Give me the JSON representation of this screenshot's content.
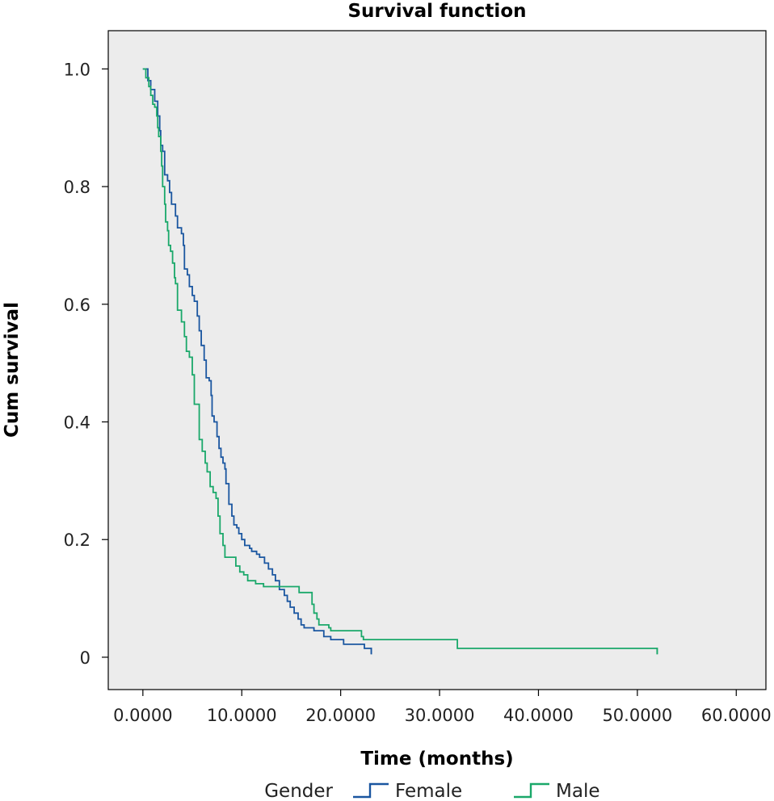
{
  "chart_data": {
    "type": "line",
    "title": "Survival function",
    "xlabel": "Time (months)",
    "ylabel": "Cum survival",
    "xlim": [
      -3.5,
      63
    ],
    "ylim": [
      -0.055,
      1.065
    ],
    "x_ticks": [
      "0.0000",
      "10.0000",
      "20.0000",
      "30.0000",
      "40.0000",
      "50.0000",
      "60.0000"
    ],
    "x_tick_values": [
      0,
      10,
      20,
      30,
      40,
      50,
      60
    ],
    "y_ticks": [
      "0",
      "0.2",
      "0.4",
      "0.6",
      "0.8",
      "1.0"
    ],
    "y_tick_values": [
      0,
      0.2,
      0.4,
      0.6,
      0.8,
      1.0
    ],
    "grid": false,
    "legend": {
      "title": "Gender",
      "position": "bottom"
    },
    "series": [
      {
        "name": "Female",
        "color": "#1a56a0",
        "step": true,
        "points": [
          [
            0,
            1.0
          ],
          [
            0.5,
            0.98
          ],
          [
            0.8,
            0.965
          ],
          [
            1.2,
            0.945
          ],
          [
            1.5,
            0.92
          ],
          [
            1.7,
            0.895
          ],
          [
            1.8,
            0.87
          ],
          [
            2.0,
            0.86
          ],
          [
            2.2,
            0.82
          ],
          [
            2.5,
            0.81
          ],
          [
            2.7,
            0.79
          ],
          [
            2.9,
            0.77
          ],
          [
            3.3,
            0.75
          ],
          [
            3.5,
            0.73
          ],
          [
            3.9,
            0.72
          ],
          [
            4.1,
            0.7
          ],
          [
            4.2,
            0.66
          ],
          [
            4.5,
            0.65
          ],
          [
            4.7,
            0.63
          ],
          [
            5.0,
            0.615
          ],
          [
            5.2,
            0.605
          ],
          [
            5.5,
            0.58
          ],
          [
            5.7,
            0.555
          ],
          [
            5.9,
            0.53
          ],
          [
            6.2,
            0.505
          ],
          [
            6.4,
            0.475
          ],
          [
            6.7,
            0.47
          ],
          [
            6.9,
            0.445
          ],
          [
            7.0,
            0.41
          ],
          [
            7.2,
            0.4
          ],
          [
            7.5,
            0.375
          ],
          [
            7.7,
            0.355
          ],
          [
            7.9,
            0.34
          ],
          [
            8.1,
            0.33
          ],
          [
            8.3,
            0.32
          ],
          [
            8.4,
            0.295
          ],
          [
            8.7,
            0.26
          ],
          [
            9.0,
            0.24
          ],
          [
            9.2,
            0.225
          ],
          [
            9.5,
            0.22
          ],
          [
            9.7,
            0.21
          ],
          [
            10.0,
            0.2
          ],
          [
            10.3,
            0.19
          ],
          [
            10.8,
            0.185
          ],
          [
            11.0,
            0.18
          ],
          [
            11.5,
            0.175
          ],
          [
            11.8,
            0.17
          ],
          [
            12.3,
            0.16
          ],
          [
            12.7,
            0.15
          ],
          [
            13.1,
            0.14
          ],
          [
            13.4,
            0.13
          ],
          [
            13.8,
            0.115
          ],
          [
            14.3,
            0.105
          ],
          [
            14.6,
            0.095
          ],
          [
            14.9,
            0.085
          ],
          [
            15.3,
            0.075
          ],
          [
            15.7,
            0.065
          ],
          [
            16.0,
            0.055
          ],
          [
            16.3,
            0.05
          ],
          [
            17.3,
            0.045
          ],
          [
            18.3,
            0.035
          ],
          [
            19.0,
            0.03
          ],
          [
            20.3,
            0.022
          ],
          [
            22.4,
            0.015
          ],
          [
            23.1,
            0.005
          ]
        ]
      },
      {
        "name": "Male",
        "color": "#1aa86a",
        "step": true,
        "points": [
          [
            0,
            1.0
          ],
          [
            0.3,
            0.985
          ],
          [
            0.6,
            0.97
          ],
          [
            0.8,
            0.955
          ],
          [
            1.0,
            0.94
          ],
          [
            1.2,
            0.935
          ],
          [
            1.4,
            0.92
          ],
          [
            1.5,
            0.9
          ],
          [
            1.6,
            0.885
          ],
          [
            1.8,
            0.86
          ],
          [
            1.9,
            0.835
          ],
          [
            2.0,
            0.8
          ],
          [
            2.2,
            0.77
          ],
          [
            2.3,
            0.74
          ],
          [
            2.5,
            0.725
          ],
          [
            2.6,
            0.7
          ],
          [
            2.8,
            0.69
          ],
          [
            3.0,
            0.67
          ],
          [
            3.2,
            0.645
          ],
          [
            3.3,
            0.635
          ],
          [
            3.5,
            0.59
          ],
          [
            3.9,
            0.57
          ],
          [
            4.2,
            0.545
          ],
          [
            4.4,
            0.52
          ],
          [
            4.7,
            0.51
          ],
          [
            5.0,
            0.48
          ],
          [
            5.2,
            0.43
          ],
          [
            5.5,
            0.43
          ],
          [
            5.7,
            0.37
          ],
          [
            6.0,
            0.35
          ],
          [
            6.3,
            0.33
          ],
          [
            6.5,
            0.315
          ],
          [
            6.8,
            0.29
          ],
          [
            7.1,
            0.28
          ],
          [
            7.4,
            0.27
          ],
          [
            7.6,
            0.24
          ],
          [
            7.8,
            0.21
          ],
          [
            8.1,
            0.19
          ],
          [
            8.3,
            0.17
          ],
          [
            9.4,
            0.155
          ],
          [
            9.8,
            0.145
          ],
          [
            10.2,
            0.14
          ],
          [
            10.6,
            0.13
          ],
          [
            11.4,
            0.125
          ],
          [
            12.2,
            0.12
          ],
          [
            15.8,
            0.11
          ],
          [
            17.1,
            0.09
          ],
          [
            17.3,
            0.075
          ],
          [
            17.6,
            0.065
          ],
          [
            17.8,
            0.055
          ],
          [
            18.8,
            0.05
          ],
          [
            19.0,
            0.045
          ],
          [
            22.1,
            0.035
          ],
          [
            22.3,
            0.03
          ],
          [
            31.8,
            0.015
          ],
          [
            52.0,
            0.005
          ]
        ]
      }
    ]
  }
}
